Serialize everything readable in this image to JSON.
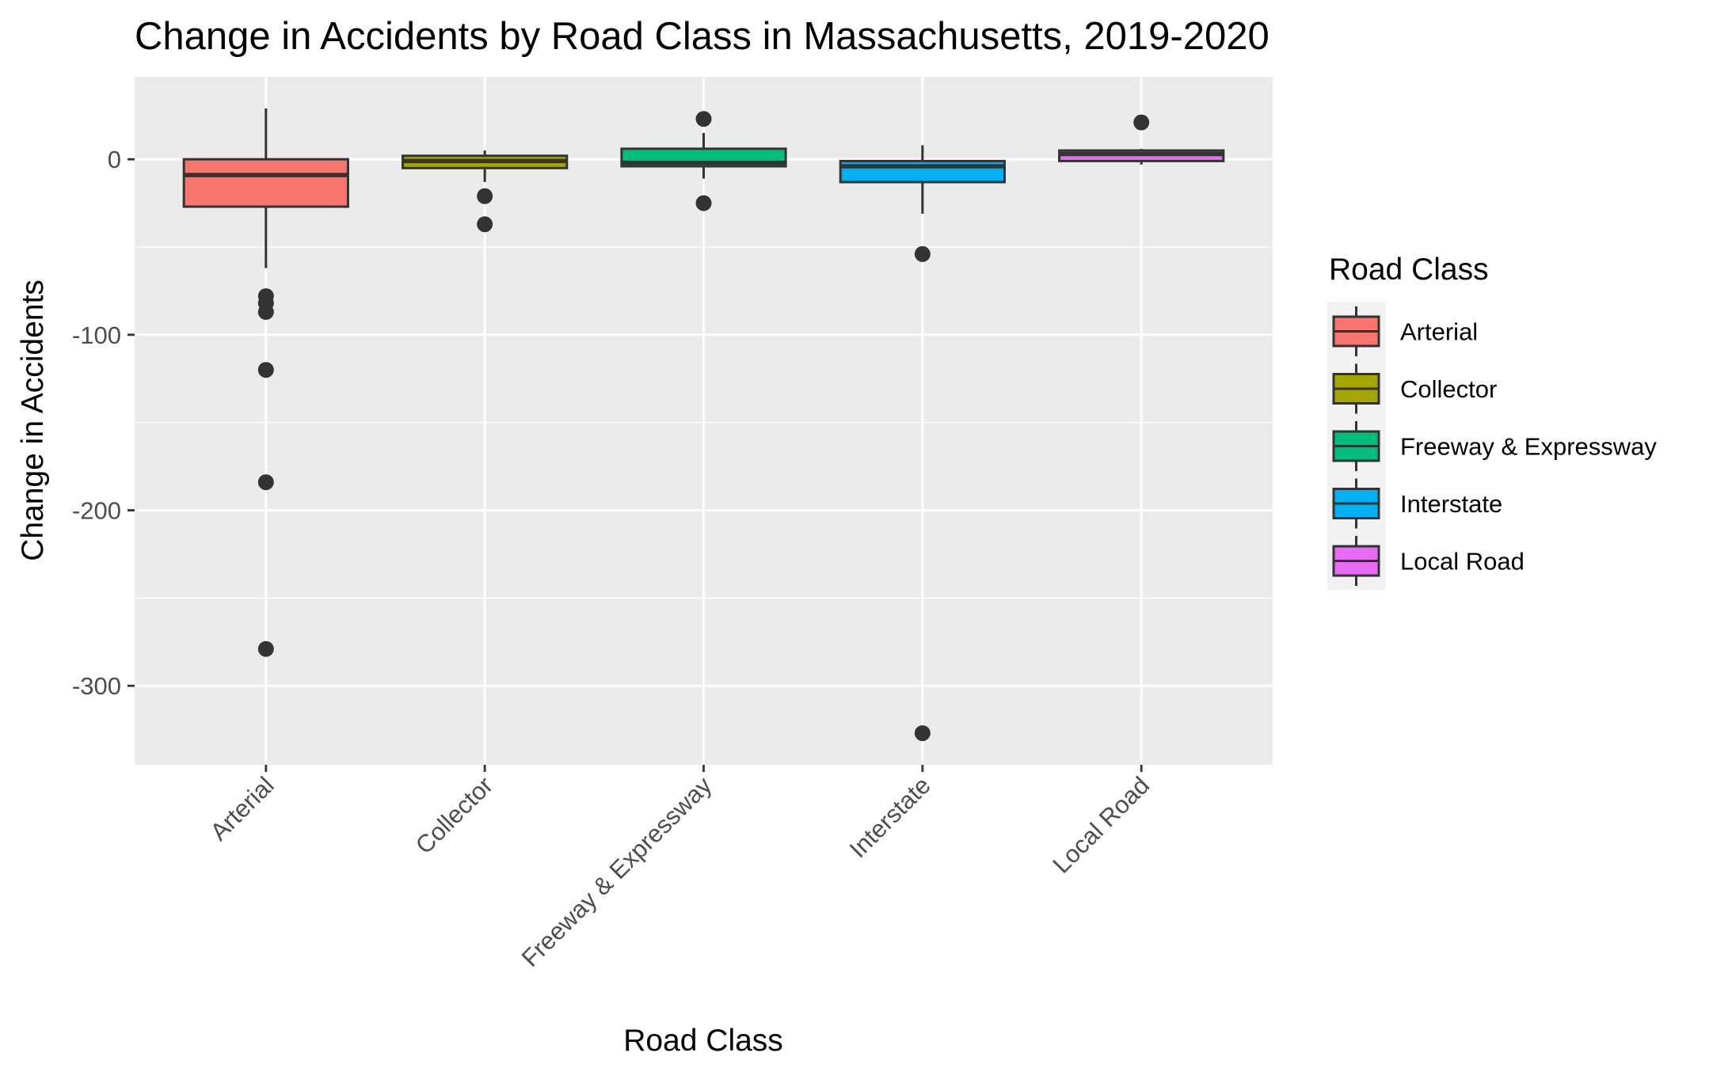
{
  "chart_data": {
    "type": "boxplot",
    "title": "Change in Accidents by Road Class in Massachusetts, 2019-2020",
    "xlabel": "Road Class",
    "ylabel": "Change in Accidents",
    "ylim": [
      -345,
      47
    ],
    "y_ticks": [
      0,
      -100,
      -200,
      -300
    ],
    "y_tick_labels": [
      "0",
      "-100",
      "-200",
      "-300"
    ],
    "grid": true,
    "legend": {
      "title": "Road Class",
      "position": "right"
    },
    "categories": [
      "Arterial",
      "Collector",
      "Freeway & Expressway",
      "Interstate",
      "Local Road"
    ],
    "boxes": [
      {
        "category": "Arterial",
        "color": "#F8766D",
        "whisker_low": -62,
        "q1": -27,
        "median": -9,
        "q3": 0,
        "whisker_high": 29,
        "outliers": [
          -78,
          -82,
          -87,
          -120,
          -184,
          -279
        ]
      },
      {
        "category": "Collector",
        "color": "#A3A500",
        "whisker_low": -13,
        "q1": -5,
        "median": -1,
        "q3": 2,
        "whisker_high": 5,
        "outliers": [
          -21,
          -37
        ]
      },
      {
        "category": "Freeway & Expressway",
        "color": "#00BF7D",
        "whisker_low": -11,
        "q1": -4,
        "median": -2,
        "q3": 6,
        "whisker_high": 15,
        "outliers": [
          23,
          -25
        ]
      },
      {
        "category": "Interstate",
        "color": "#00B0F6",
        "whisker_low": -31,
        "q1": -13,
        "median": -4,
        "q3": -1,
        "whisker_high": 8,
        "outliers": [
          -54,
          -327
        ]
      },
      {
        "category": "Local Road",
        "color": "#E76BF3",
        "whisker_low": -3,
        "q1": -1,
        "median": 3,
        "q3": 5,
        "whisker_high": 6,
        "outliers": [
          21
        ]
      }
    ]
  }
}
